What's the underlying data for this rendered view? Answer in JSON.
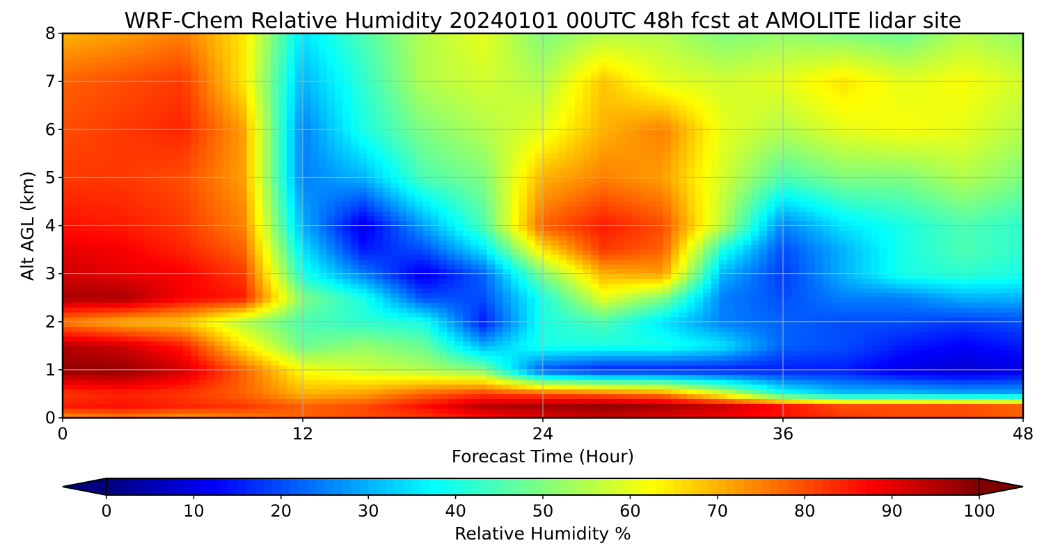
{
  "chart_data": {
    "type": "heatmap",
    "title": "WRF-Chem Relative Humidity 20240101 00UTC 48h fcst at AMOLITE lidar site",
    "xlabel": "Forecast Time (Hour)",
    "ylabel": "Alt AGL (km)",
    "xlim": [
      0,
      48
    ],
    "ylim": [
      0,
      8
    ],
    "xticks": [
      "0",
      "12",
      "24",
      "36",
      "48"
    ],
    "yticks": [
      "0",
      "1",
      "2",
      "3",
      "4",
      "5",
      "6",
      "7",
      "8"
    ],
    "grid": true,
    "x_hours": [
      0,
      3,
      6,
      9,
      12,
      15,
      18,
      21,
      24,
      27,
      30,
      33,
      36,
      39,
      42,
      45,
      48
    ],
    "y_km": [
      0,
      0.25,
      0.5,
      1,
      1.5,
      2,
      2.5,
      3,
      3.5,
      4,
      5,
      6,
      7,
      8
    ],
    "rh_percent": [
      [
        72,
        75,
        72,
        75,
        78,
        80,
        82,
        86,
        90,
        92,
        90,
        88,
        86,
        82,
        80,
        80,
        78
      ],
      [
        85,
        86,
        84,
        82,
        78,
        80,
        86,
        94,
        96,
        98,
        96,
        92,
        86,
        80,
        80,
        80,
        78
      ],
      [
        82,
        84,
        82,
        78,
        70,
        72,
        78,
        82,
        80,
        78,
        75,
        60,
        40,
        32,
        32,
        30,
        30
      ],
      [
        98,
        98,
        92,
        78,
        62,
        58,
        55,
        50,
        20,
        15,
        15,
        15,
        15,
        15,
        10,
        8,
        10
      ],
      [
        95,
        92,
        85,
        65,
        48,
        52,
        48,
        30,
        40,
        40,
        40,
        35,
        22,
        20,
        15,
        12,
        15
      ],
      [
        75,
        70,
        68,
        55,
        45,
        42,
        40,
        15,
        40,
        45,
        35,
        25,
        22,
        20,
        20,
        18,
        20
      ],
      [
        96,
        96,
        88,
        85,
        50,
        40,
        20,
        20,
        40,
        60,
        50,
        25,
        20,
        25,
        25,
        30,
        30
      ],
      [
        92,
        90,
        88,
        82,
        40,
        25,
        10,
        22,
        50,
        70,
        72,
        30,
        18,
        30,
        40,
        42,
        40
      ],
      [
        90,
        88,
        84,
        78,
        35,
        15,
        20,
        35,
        65,
        82,
        78,
        40,
        20,
        30,
        40,
        45,
        42
      ],
      [
        86,
        85,
        82,
        75,
        30,
        10,
        28,
        45,
        78,
        85,
        80,
        55,
        25,
        35,
        40,
        45,
        42
      ],
      [
        82,
        82,
        80,
        72,
        25,
        30,
        45,
        50,
        70,
        75,
        72,
        58,
        45,
        50,
        50,
        55,
        50
      ],
      [
        80,
        82,
        84,
        72,
        25,
        40,
        50,
        55,
        60,
        70,
        75,
        60,
        55,
        60,
        62,
        60,
        55
      ],
      [
        78,
        80,
        82,
        65,
        30,
        42,
        55,
        58,
        55,
        68,
        60,
        58,
        60,
        65,
        60,
        62,
        58
      ],
      [
        70,
        72,
        75,
        65,
        35,
        45,
        55,
        60,
        50,
        55,
        55,
        50,
        52,
        50,
        48,
        55,
        52
      ]
    ],
    "colorbar": {
      "label": "Relative Humidity %",
      "ticks": [
        "0",
        "10",
        "20",
        "30",
        "40",
        "50",
        "60",
        "70",
        "80",
        "90",
        "100"
      ],
      "min": 0,
      "max": 100,
      "extend": "both",
      "colormap": "jet"
    }
  }
}
